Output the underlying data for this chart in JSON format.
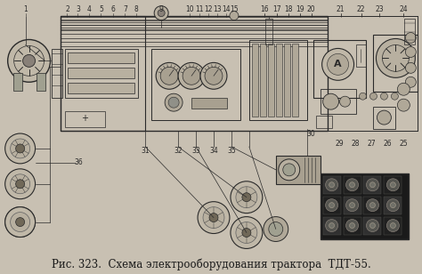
{
  "background_color": "#c8c0b0",
  "caption": "Рис. 323.  Схема электрооборудования трактора  ТДТ-55.",
  "caption_fontsize": 8.5,
  "caption_color": "#1a1a1a",
  "figsize": [
    4.74,
    3.08
  ],
  "dpi": 100,
  "image_bg": "#c8c0b2",
  "dark": "#2a2a2a",
  "mid": "#606060",
  "light_gray": "#b0a898"
}
